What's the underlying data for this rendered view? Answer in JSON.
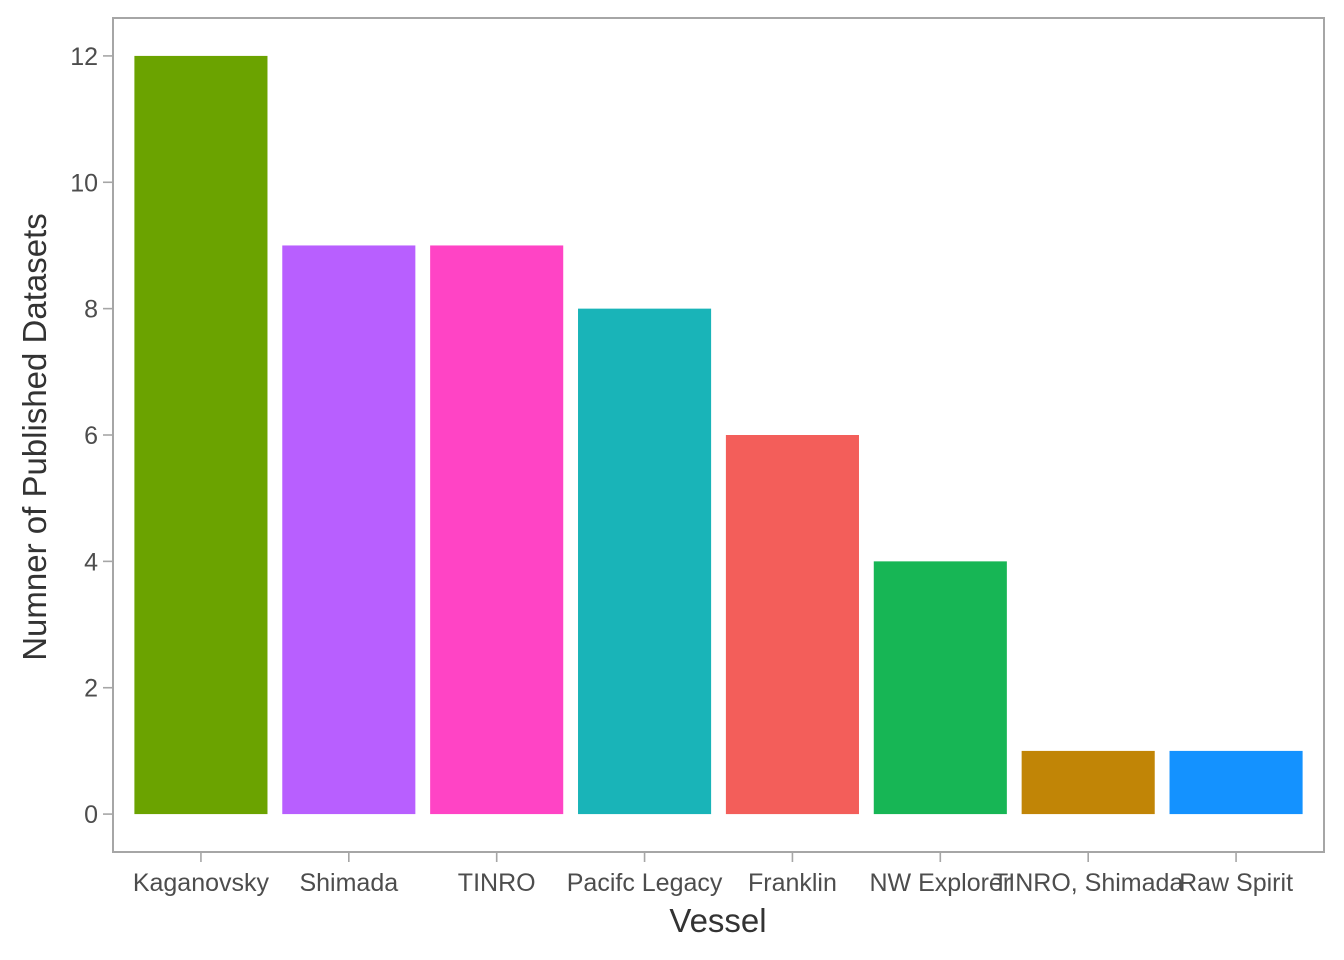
{
  "chart_data": {
    "type": "bar",
    "title": "",
    "xlabel": "Vessel",
    "ylabel": "Numner of Published Datasets",
    "categories": [
      "Kaganovsky",
      "Shimada",
      "TINRO",
      "Pacifc Legacy",
      "Franklin",
      "NW Explorer",
      "TINRO, Shimada",
      "Raw Spirit"
    ],
    "values": [
      12,
      9,
      9,
      8,
      6,
      4,
      1,
      1
    ],
    "colors": [
      "#6BA300",
      "#B85FFF",
      "#FF44C5",
      "#19B4B8",
      "#F35E5A",
      "#17B655",
      "#C18506",
      "#1492FF"
    ],
    "y_ticks": [
      0,
      2,
      4,
      6,
      8,
      10,
      12
    ],
    "ylim": [
      -0.6,
      12.6
    ],
    "grid": false,
    "legend": "none"
  }
}
